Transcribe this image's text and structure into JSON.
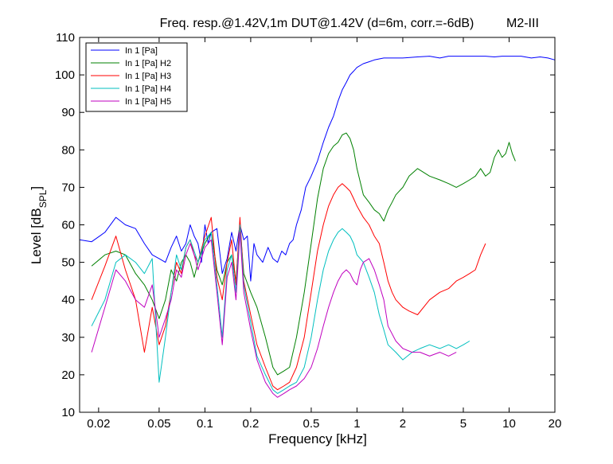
{
  "chart_data": {
    "type": "line",
    "title": "Freq. resp.@1.42V,1m DUT@1.42V (d=6m, corr.=-6dB)",
    "subtitle": "M2-III",
    "xlabel": "Frequency [kHz]",
    "ylabel_main": "Level [dB",
    "ylabel_sub": "SPL",
    "ylabel_end": "]",
    "xscale": "log",
    "xlim": [
      0.015,
      20
    ],
    "ylim": [
      10,
      110
    ],
    "grid": false,
    "legend_position": "top-left",
    "xticks": [
      0.02,
      0.05,
      0.1,
      0.2,
      0.5,
      1,
      2,
      5,
      10,
      20
    ],
    "xtick_labels": [
      "0.02",
      "0.05",
      "0.1",
      "0.2",
      "0.5",
      "1",
      "2",
      "5",
      "10",
      "20"
    ],
    "yticks": [
      10,
      20,
      30,
      40,
      50,
      60,
      70,
      80,
      90,
      100,
      110
    ],
    "ytick_labels": [
      "10",
      "20",
      "30",
      "40",
      "50",
      "60",
      "70",
      "80",
      "90",
      "100",
      "110"
    ],
    "series": [
      {
        "name": "In 1 [Pa]",
        "color": "#0000ff",
        "x": [
          0.015,
          0.018,
          0.022,
          0.026,
          0.03,
          0.035,
          0.04,
          0.045,
          0.05,
          0.055,
          0.06,
          0.065,
          0.07,
          0.075,
          0.08,
          0.085,
          0.09,
          0.095,
          0.1,
          0.105,
          0.11,
          0.12,
          0.13,
          0.14,
          0.15,
          0.16,
          0.17,
          0.18,
          0.19,
          0.2,
          0.21,
          0.22,
          0.24,
          0.26,
          0.28,
          0.3,
          0.32,
          0.34,
          0.36,
          0.38,
          0.4,
          0.43,
          0.46,
          0.5,
          0.55,
          0.6,
          0.65,
          0.7,
          0.75,
          0.8,
          0.85,
          0.9,
          0.95,
          1.0,
          1.1,
          1.2,
          1.3,
          1.5,
          1.7,
          2,
          2.5,
          3,
          3.5,
          4,
          5,
          6,
          7,
          8,
          9,
          10,
          12,
          14,
          16,
          18,
          20
        ],
        "y": [
          56,
          55.5,
          58,
          62,
          60,
          59,
          55,
          52,
          51,
          50,
          54,
          57,
          53,
          55,
          60,
          57,
          55,
          50,
          60,
          55,
          58,
          59,
          47,
          51,
          58,
          53,
          60,
          56,
          57,
          45,
          55,
          52,
          50,
          54,
          51,
          50,
          53,
          52,
          55,
          56,
          60,
          64,
          70,
          73,
          77,
          82,
          86,
          89,
          93,
          96,
          98,
          100,
          101,
          102,
          103,
          103.5,
          104,
          104.5,
          104.5,
          104.5,
          104.8,
          105,
          104.5,
          105,
          105,
          105,
          105,
          104.8,
          105,
          105,
          105,
          104.5,
          104.8,
          104.5,
          104
        ]
      },
      {
        "name": "In 1 [Pa] H2",
        "color": "#008000",
        "x": [
          0.018,
          0.022,
          0.026,
          0.03,
          0.035,
          0.04,
          0.045,
          0.05,
          0.055,
          0.06,
          0.065,
          0.07,
          0.075,
          0.08,
          0.085,
          0.09,
          0.1,
          0.11,
          0.12,
          0.13,
          0.14,
          0.15,
          0.16,
          0.17,
          0.18,
          0.2,
          0.22,
          0.25,
          0.28,
          0.3,
          0.33,
          0.36,
          0.4,
          0.45,
          0.5,
          0.55,
          0.6,
          0.65,
          0.7,
          0.75,
          0.8,
          0.85,
          0.9,
          0.95,
          1.0,
          1.1,
          1.2,
          1.3,
          1.4,
          1.5,
          1.6,
          1.7,
          1.8,
          2,
          2.2,
          2.5,
          3,
          3.5,
          4,
          4.5,
          5,
          5.5,
          6,
          6.5,
          7,
          7.5,
          8,
          8.5,
          9,
          9.5,
          10,
          10.5,
          11
        ],
        "y": [
          49,
          52,
          53,
          52,
          47,
          44,
          40,
          35,
          40,
          48,
          45,
          50,
          52,
          50,
          46,
          50,
          55,
          58,
          48,
          44,
          50,
          52,
          45,
          60,
          47,
          42,
          38,
          30,
          22,
          20,
          21,
          22,
          30,
          42,
          55,
          67,
          75,
          79,
          81,
          82,
          84,
          84.5,
          83,
          80,
          75,
          68,
          66,
          64,
          63,
          61,
          64,
          66,
          68,
          70,
          73,
          75,
          73,
          72,
          71,
          70,
          71,
          72,
          73,
          75,
          73,
          74,
          78,
          80,
          78,
          79,
          82,
          79,
          77
        ]
      },
      {
        "name": "In 1 [Pa] H3",
        "color": "#ff0000",
        "x": [
          0.018,
          0.022,
          0.026,
          0.03,
          0.035,
          0.04,
          0.045,
          0.05,
          0.055,
          0.06,
          0.065,
          0.07,
          0.075,
          0.08,
          0.085,
          0.09,
          0.1,
          0.11,
          0.12,
          0.13,
          0.14,
          0.15,
          0.16,
          0.17,
          0.18,
          0.2,
          0.22,
          0.25,
          0.28,
          0.3,
          0.33,
          0.36,
          0.4,
          0.45,
          0.5,
          0.55,
          0.6,
          0.65,
          0.7,
          0.75,
          0.8,
          0.85,
          0.9,
          0.95,
          1.0,
          1.1,
          1.2,
          1.3,
          1.4,
          1.5,
          1.6,
          1.7,
          1.8,
          2,
          2.2,
          2.5,
          3,
          3.5,
          4,
          4.5,
          5,
          5.5,
          6,
          6.5,
          7
        ],
        "y": [
          40,
          49,
          57,
          48,
          40,
          26,
          38,
          28,
          33,
          42,
          50,
          47,
          54,
          56,
          52,
          50,
          57,
          62,
          46,
          40,
          50,
          56,
          44,
          62,
          45,
          36,
          28,
          22,
          17,
          16,
          17,
          18,
          22,
          30,
          42,
          53,
          60,
          65,
          68,
          70,
          71,
          70,
          69,
          67,
          65,
          62,
          60,
          57,
          55,
          50,
          45,
          42,
          40,
          38,
          37,
          36,
          40,
          42,
          43,
          45,
          46,
          47,
          48,
          52,
          55
        ]
      },
      {
        "name": "In 1 [Pa] H4",
        "color": "#00bfbf",
        "x": [
          0.018,
          0.022,
          0.026,
          0.03,
          0.035,
          0.04,
          0.045,
          0.05,
          0.055,
          0.06,
          0.065,
          0.07,
          0.075,
          0.08,
          0.085,
          0.09,
          0.1,
          0.11,
          0.12,
          0.13,
          0.14,
          0.15,
          0.16,
          0.17,
          0.18,
          0.2,
          0.22,
          0.25,
          0.28,
          0.3,
          0.33,
          0.36,
          0.4,
          0.45,
          0.5,
          0.55,
          0.6,
          0.65,
          0.7,
          0.75,
          0.8,
          0.85,
          0.9,
          0.95,
          1.0,
          1.1,
          1.2,
          1.3,
          1.4,
          1.5,
          1.6,
          1.8,
          2,
          2.3,
          2.6,
          3,
          3.5,
          4,
          4.5,
          5,
          5.5
        ],
        "y": [
          33,
          40,
          50,
          52,
          50,
          47,
          51,
          18,
          30,
          42,
          52,
          48,
          54,
          56,
          53,
          50,
          56,
          58,
          44,
          30,
          48,
          52,
          42,
          60,
          44,
          34,
          25,
          20,
          16,
          15,
          16,
          17,
          18,
          22,
          30,
          40,
          48,
          53,
          56,
          58,
          59,
          58,
          57,
          55,
          52,
          50,
          46,
          42,
          36,
          32,
          28,
          26,
          24,
          26,
          27,
          28,
          27,
          28,
          27,
          28,
          29
        ]
      },
      {
        "name": "In 1 [Pa] H5",
        "color": "#bf00bf",
        "x": [
          0.018,
          0.022,
          0.026,
          0.03,
          0.035,
          0.04,
          0.045,
          0.05,
          0.055,
          0.06,
          0.065,
          0.07,
          0.075,
          0.08,
          0.085,
          0.09,
          0.1,
          0.11,
          0.12,
          0.13,
          0.14,
          0.15,
          0.16,
          0.17,
          0.18,
          0.2,
          0.22,
          0.25,
          0.28,
          0.3,
          0.33,
          0.36,
          0.4,
          0.45,
          0.5,
          0.55,
          0.6,
          0.65,
          0.7,
          0.75,
          0.8,
          0.85,
          0.9,
          0.95,
          1.0,
          1.05,
          1.1,
          1.2,
          1.3,
          1.4,
          1.5,
          1.6,
          1.8,
          2,
          2.3,
          2.6,
          3,
          3.5,
          4,
          4.5
        ],
        "y": [
          26,
          38,
          48,
          45,
          40,
          38,
          44,
          30,
          35,
          40,
          48,
          46,
          52,
          55,
          52,
          48,
          54,
          56,
          42,
          28,
          46,
          50,
          40,
          58,
          42,
          32,
          24,
          18,
          15,
          14,
          15,
          16,
          17,
          19,
          22,
          27,
          33,
          38,
          42,
          45,
          47,
          48,
          47,
          45,
          44,
          48,
          50,
          51,
          48,
          44,
          40,
          33,
          29,
          27,
          26,
          26,
          25,
          26,
          25,
          26
        ]
      }
    ]
  }
}
